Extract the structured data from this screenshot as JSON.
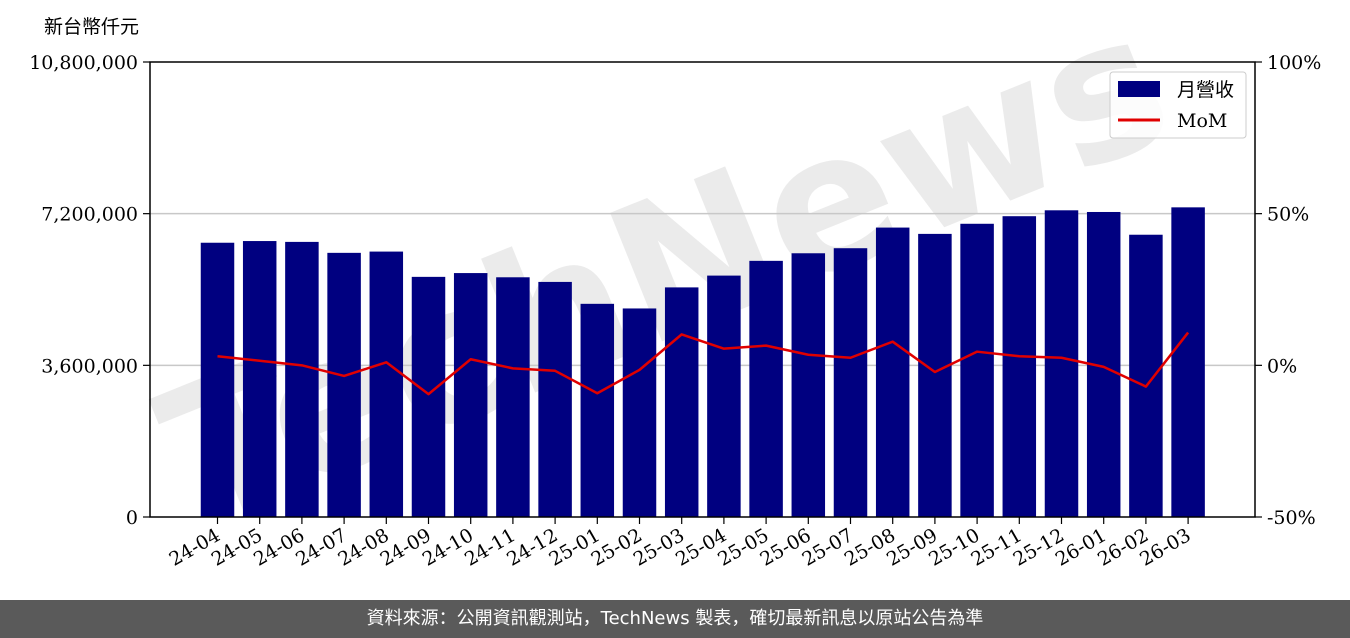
{
  "chart_data": {
    "type": "bar",
    "y_unit_label": "新台幣仟元",
    "categories": [
      "24-04",
      "24-05",
      "24-06",
      "24-07",
      "24-08",
      "24-09",
      "24-10",
      "24-11",
      "24-12",
      "25-01",
      "25-02",
      "25-03",
      "25-04",
      "25-05",
      "25-06",
      "25-07",
      "25-08",
      "25-09",
      "25-10",
      "25-11",
      "25-12",
      "26-01",
      "26-02",
      "26-03"
    ],
    "series": [
      {
        "name": "月營收",
        "axis": "left",
        "type": "bar",
        "color": "#000080",
        "values": [
          6510000,
          6550000,
          6530000,
          6270000,
          6300000,
          5700000,
          5790000,
          5690000,
          5580000,
          5060000,
          4950000,
          5450000,
          5730000,
          6080000,
          6260000,
          6380000,
          6870000,
          6720000,
          6960000,
          7140000,
          7280000,
          7240000,
          6700000,
          7350000
        ]
      },
      {
        "name": "MoM",
        "axis": "right",
        "type": "line",
        "color": "#e00000",
        "values": [
          3.0,
          1.5,
          0.0,
          -3.5,
          1.0,
          -9.5,
          2.0,
          -1.0,
          -1.8,
          -9.2,
          -1.5,
          10.2,
          5.5,
          6.5,
          3.5,
          2.5,
          7.8,
          -2.2,
          4.5,
          3.0,
          2.5,
          -0.5,
          -7.0,
          10.8
        ]
      }
    ],
    "y_left": {
      "min": 0,
      "max": 10800000,
      "ticks": [
        0,
        3600000,
        7200000,
        10800000
      ],
      "tick_labels": [
        "0",
        "3,600,000",
        "7,200,000",
        "10,800,000"
      ]
    },
    "y_right": {
      "min": -50,
      "max": 100,
      "ticks": [
        -50,
        0,
        50,
        100
      ],
      "tick_labels": [
        "-50%",
        "0%",
        "50%",
        "100%"
      ]
    },
    "grid": "horizontal",
    "legend_position": "top-right",
    "watermark": "TechNews"
  },
  "footer": {
    "text": "資料來源：公開資訊觀測站，TechNews 製表，確切最新訊息以原站公告為準"
  }
}
